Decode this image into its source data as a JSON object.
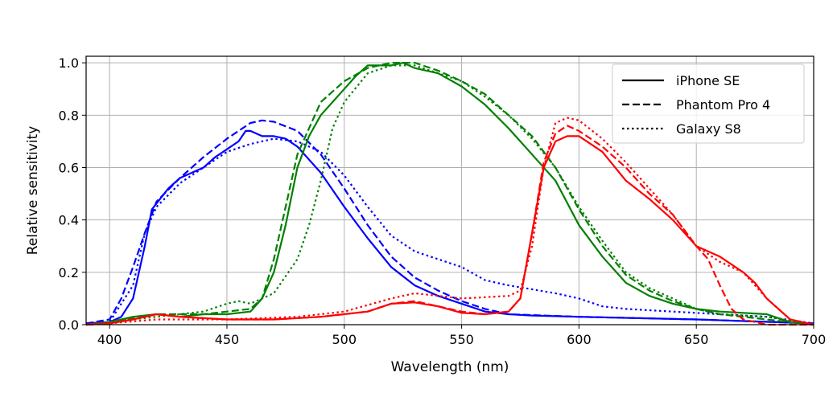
{
  "chart_data": {
    "type": "line",
    "title": "",
    "xlabel": "Wavelength (nm)",
    "ylabel": "Relative sensitivity",
    "xlim": [
      390,
      700
    ],
    "ylim": [
      0,
      1.025
    ],
    "xticks": [
      400,
      450,
      500,
      550,
      600,
      650,
      700
    ],
    "yticks": [
      0.0,
      0.2,
      0.4,
      0.6,
      0.8,
      1.0
    ],
    "grid": true,
    "legend_position": "top-right",
    "legend": [
      {
        "name": "iPhone SE",
        "dash": "solid"
      },
      {
        "name": "Phantom Pro 4",
        "dash": "dashed"
      },
      {
        "name": "Galaxy S8",
        "dash": "dotted"
      }
    ],
    "channel_colors": {
      "blue": "#0000ff",
      "green": "#008000",
      "red": "#ff0000"
    },
    "series": [
      {
        "device": "iPhone SE",
        "channel": "blue",
        "dash": "solid",
        "x": [
          390,
          400,
          405,
          410,
          415,
          418,
          425,
          430,
          435,
          440,
          445,
          450,
          455,
          458,
          460,
          465,
          470,
          475,
          480,
          490,
          500,
          510,
          520,
          530,
          540,
          550,
          560,
          570,
          580,
          600,
          650,
          700
        ],
        "y": [
          0.005,
          0.01,
          0.03,
          0.1,
          0.3,
          0.44,
          0.52,
          0.56,
          0.58,
          0.6,
          0.64,
          0.67,
          0.7,
          0.74,
          0.74,
          0.72,
          0.72,
          0.71,
          0.68,
          0.58,
          0.45,
          0.33,
          0.22,
          0.15,
          0.11,
          0.08,
          0.05,
          0.04,
          0.035,
          0.03,
          0.02,
          0.005
        ]
      },
      {
        "device": "Phantom Pro 4",
        "channel": "blue",
        "dash": "dashed",
        "x": [
          390,
          400,
          405,
          410,
          415,
          420,
          430,
          440,
          450,
          460,
          465,
          470,
          480,
          490,
          500,
          510,
          520,
          530,
          540,
          550,
          560,
          570,
          600,
          650,
          700
        ],
        "y": [
          0.005,
          0.02,
          0.1,
          0.22,
          0.35,
          0.47,
          0.56,
          0.64,
          0.71,
          0.77,
          0.78,
          0.775,
          0.74,
          0.65,
          0.52,
          0.38,
          0.26,
          0.18,
          0.13,
          0.09,
          0.06,
          0.04,
          0.03,
          0.02,
          0.005
        ]
      },
      {
        "device": "Galaxy S8",
        "channel": "blue",
        "dash": "dotted",
        "x": [
          390,
          400,
          410,
          415,
          420,
          430,
          440,
          450,
          460,
          470,
          480,
          490,
          500,
          510,
          520,
          530,
          540,
          550,
          560,
          570,
          580,
          590,
          600,
          610,
          620,
          640,
          660,
          680,
          700
        ],
        "y": [
          0.005,
          0.01,
          0.15,
          0.35,
          0.45,
          0.54,
          0.6,
          0.66,
          0.69,
          0.71,
          0.7,
          0.66,
          0.57,
          0.45,
          0.34,
          0.28,
          0.25,
          0.22,
          0.17,
          0.15,
          0.135,
          0.12,
          0.1,
          0.07,
          0.06,
          0.05,
          0.04,
          0.03,
          0.005
        ]
      },
      {
        "device": "iPhone SE",
        "channel": "green",
        "dash": "solid",
        "x": [
          390,
          400,
          410,
          420,
          430,
          440,
          450,
          460,
          465,
          470,
          475,
          480,
          485,
          490,
          500,
          505,
          510,
          520,
          525,
          530,
          540,
          550,
          560,
          570,
          580,
          590,
          600,
          610,
          620,
          630,
          640,
          650,
          660,
          680,
          690,
          700
        ],
        "y": [
          0,
          0.01,
          0.03,
          0.04,
          0.03,
          0.04,
          0.04,
          0.05,
          0.1,
          0.2,
          0.38,
          0.6,
          0.72,
          0.8,
          0.9,
          0.95,
          0.99,
          0.99,
          1.0,
          0.98,
          0.96,
          0.91,
          0.84,
          0.75,
          0.65,
          0.55,
          0.38,
          0.26,
          0.16,
          0.11,
          0.08,
          0.06,
          0.05,
          0.04,
          0.01,
          0
        ]
      },
      {
        "device": "Phantom Pro 4",
        "channel": "green",
        "dash": "dashed",
        "x": [
          390,
          400,
          420,
          440,
          450,
          460,
          465,
          470,
          475,
          480,
          490,
          500,
          510,
          520,
          530,
          540,
          550,
          560,
          570,
          580,
          590,
          600,
          610,
          620,
          630,
          640,
          650,
          660,
          680,
          700
        ],
        "y": [
          0,
          0.01,
          0.04,
          0.04,
          0.05,
          0.06,
          0.1,
          0.25,
          0.45,
          0.65,
          0.85,
          0.93,
          0.98,
          1.0,
          1.0,
          0.97,
          0.93,
          0.88,
          0.8,
          0.72,
          0.6,
          0.44,
          0.3,
          0.19,
          0.13,
          0.09,
          0.06,
          0.04,
          0.02,
          0
        ]
      },
      {
        "device": "Galaxy S8",
        "channel": "green",
        "dash": "dotted",
        "x": [
          390,
          400,
          420,
          440,
          450,
          455,
          460,
          470,
          480,
          485,
          490,
          495,
          500,
          510,
          520,
          530,
          540,
          550,
          560,
          570,
          580,
          590,
          600,
          610,
          620,
          630,
          640,
          650,
          660,
          680,
          700
        ],
        "y": [
          0,
          0.01,
          0.03,
          0.05,
          0.08,
          0.09,
          0.08,
          0.12,
          0.25,
          0.38,
          0.55,
          0.75,
          0.85,
          0.96,
          0.99,
          0.99,
          0.96,
          0.93,
          0.87,
          0.8,
          0.71,
          0.6,
          0.45,
          0.32,
          0.2,
          0.14,
          0.1,
          0.06,
          0.04,
          0.03,
          0
        ]
      },
      {
        "device": "iPhone SE",
        "channel": "red",
        "dash": "solid",
        "x": [
          390,
          400,
          410,
          420,
          430,
          450,
          470,
          490,
          510,
          520,
          530,
          540,
          550,
          560,
          570,
          575,
          580,
          585,
          590,
          595,
          600,
          610,
          620,
          630,
          640,
          650,
          660,
          670,
          675,
          680,
          690,
          700
        ],
        "y": [
          0,
          0.005,
          0.02,
          0.04,
          0.03,
          0.02,
          0.02,
          0.03,
          0.05,
          0.08,
          0.085,
          0.07,
          0.045,
          0.04,
          0.05,
          0.1,
          0.35,
          0.6,
          0.7,
          0.72,
          0.72,
          0.66,
          0.55,
          0.48,
          0.4,
          0.3,
          0.26,
          0.2,
          0.16,
          0.1,
          0.02,
          0
        ]
      },
      {
        "device": "Phantom Pro 4",
        "channel": "red",
        "dash": "dashed",
        "x": [
          390,
          400,
          410,
          420,
          430,
          450,
          470,
          490,
          510,
          520,
          530,
          540,
          550,
          560,
          570,
          575,
          580,
          585,
          590,
          595,
          600,
          610,
          620,
          630,
          640,
          650,
          655,
          660,
          665,
          670,
          680,
          700
        ],
        "y": [
          0,
          0.005,
          0.02,
          0.04,
          0.03,
          0.02,
          0.02,
          0.03,
          0.05,
          0.08,
          0.09,
          0.07,
          0.05,
          0.04,
          0.05,
          0.1,
          0.35,
          0.62,
          0.73,
          0.76,
          0.74,
          0.68,
          0.6,
          0.5,
          0.42,
          0.3,
          0.25,
          0.15,
          0.06,
          0.02,
          0,
          0
        ]
      },
      {
        "device": "Galaxy S8",
        "channel": "red",
        "dash": "dotted",
        "x": [
          390,
          400,
          420,
          450,
          480,
          500,
          520,
          530,
          550,
          570,
          575,
          580,
          585,
          590,
          595,
          600,
          610,
          620,
          630,
          640,
          650,
          660,
          670,
          680,
          690,
          700
        ],
        "y": [
          0,
          0.005,
          0.02,
          0.02,
          0.03,
          0.05,
          0.1,
          0.12,
          0.1,
          0.11,
          0.13,
          0.3,
          0.6,
          0.77,
          0.79,
          0.78,
          0.71,
          0.62,
          0.52,
          0.42,
          0.3,
          0.24,
          0.2,
          0.1,
          0.02,
          0
        ]
      }
    ]
  }
}
